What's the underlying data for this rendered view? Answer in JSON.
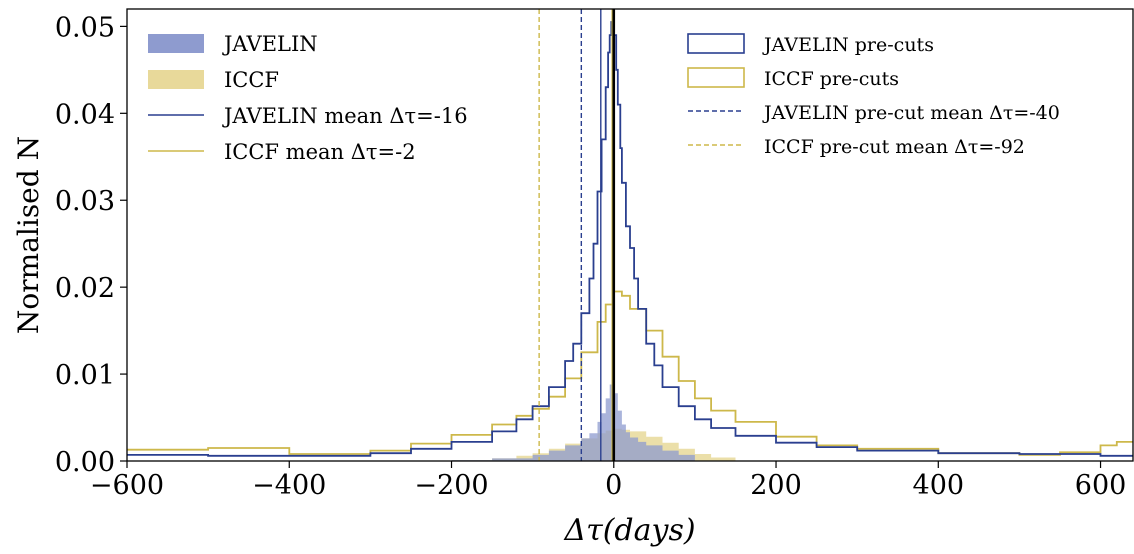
{
  "chart_data": {
    "type": "histogram",
    "xlabel": "Δτ(days)",
    "ylabel": "Normalised N",
    "xlim": [
      -600,
      640
    ],
    "ylim": [
      0,
      0.052
    ],
    "xticks": [
      -600,
      -400,
      -200,
      0,
      200,
      400,
      600
    ],
    "xtick_labels": [
      "−600",
      "−400",
      "−200",
      "0",
      "200",
      "400",
      "600"
    ],
    "yticks": [
      0,
      0.01,
      0.02,
      0.03,
      0.04,
      0.05
    ],
    "ytick_labels": [
      "0.00",
      "0.01",
      "0.02",
      "0.03",
      "0.04",
      "0.05"
    ],
    "grid": false,
    "colors": {
      "javelin": "#2a3f8f",
      "javelin_fill": "#8e9bcf",
      "iccf": "#cdb84a",
      "iccf_fill": "#e8d99a",
      "zero_line": "#000000"
    },
    "legend_left": {
      "placement": "top-left",
      "entries": [
        {
          "label": "JAVELIN",
          "style": "filled-patch",
          "color_key": "javelin_fill"
        },
        {
          "label": "ICCF",
          "style": "filled-patch",
          "color_key": "iccf_fill"
        },
        {
          "label": "JAVELIN mean Δτ=-16",
          "style": "solid-line",
          "color_key": "javelin"
        },
        {
          "label": "ICCF mean Δτ=-2",
          "style": "solid-line",
          "color_key": "iccf"
        }
      ]
    },
    "legend_right": {
      "placement": "top-right",
      "entries": [
        {
          "label": "JAVELIN pre-cuts",
          "style": "open-patch",
          "color_key": "javelin"
        },
        {
          "label": "ICCF pre-cuts",
          "style": "open-patch",
          "color_key": "iccf"
        },
        {
          "label": "JAVELIN pre-cut mean Δτ=-40",
          "style": "dashed-line",
          "color_key": "javelin"
        },
        {
          "label": "ICCF pre-cut mean Δτ=-92",
          "style": "dashed-line",
          "color_key": "iccf"
        }
      ]
    },
    "vertical_lines": [
      {
        "x": -16,
        "style": "solid",
        "color_key": "javelin"
      },
      {
        "x": -2,
        "style": "solid",
        "color_key": "iccf"
      },
      {
        "x": -40,
        "style": "dashed",
        "color_key": "javelin"
      },
      {
        "x": -92,
        "style": "dashed",
        "color_key": "iccf"
      },
      {
        "x": 0,
        "style": "solid-thick",
        "color_key": "zero_line"
      }
    ],
    "series": [
      {
        "name": "JAVELIN pre-cuts",
        "kind": "step",
        "x": [
          -600,
          -500,
          -400,
          -300,
          -250,
          -200,
          -150,
          -120,
          -100,
          -80,
          -60,
          -50,
          -40,
          -30,
          -25,
          -20,
          -15,
          -10,
          -7,
          -5,
          -3,
          0,
          3,
          5,
          8,
          10,
          15,
          20,
          25,
          30,
          40,
          50,
          60,
          80,
          100,
          120,
          150,
          200,
          250,
          300,
          400,
          500,
          600,
          640
        ],
        "y": [
          0.0007,
          0.0006,
          0.0006,
          0.0009,
          0.0014,
          0.0022,
          0.0034,
          0.0048,
          0.0063,
          0.0085,
          0.0115,
          0.0135,
          0.017,
          0.021,
          0.025,
          0.031,
          0.037,
          0.043,
          0.047,
          0.049,
          0.0505,
          0.049,
          0.045,
          0.041,
          0.036,
          0.032,
          0.027,
          0.0245,
          0.021,
          0.0175,
          0.0135,
          0.011,
          0.0085,
          0.0063,
          0.0048,
          0.0038,
          0.0029,
          0.0021,
          0.0016,
          0.0012,
          0.0009,
          0.0008,
          0.0006,
          0.0006
        ]
      },
      {
        "name": "ICCF pre-cuts",
        "kind": "step",
        "x": [
          -600,
          -500,
          -400,
          -300,
          -250,
          -200,
          -150,
          -120,
          -100,
          -80,
          -60,
          -40,
          -20,
          -10,
          0,
          10,
          20,
          40,
          60,
          80,
          100,
          120,
          150,
          200,
          250,
          300,
          400,
          500,
          550,
          600,
          620,
          640
        ],
        "y": [
          0.0013,
          0.0015,
          0.0008,
          0.0012,
          0.002,
          0.003,
          0.0042,
          0.0052,
          0.006,
          0.0074,
          0.0095,
          0.0125,
          0.016,
          0.018,
          0.0195,
          0.019,
          0.0175,
          0.015,
          0.012,
          0.0092,
          0.0072,
          0.0058,
          0.0045,
          0.0028,
          0.0018,
          0.0014,
          0.0009,
          0.0007,
          0.001,
          0.0018,
          0.0022,
          0.0022
        ]
      },
      {
        "name": "JAVELIN",
        "kind": "filled",
        "x": [
          -200,
          -150,
          -100,
          -80,
          -60,
          -40,
          -30,
          -20,
          -15,
          -10,
          -5,
          0,
          5,
          10,
          15,
          20,
          30,
          40,
          60,
          80,
          100
        ],
        "y": [
          0.0001,
          0.0003,
          0.0007,
          0.0012,
          0.0018,
          0.0026,
          0.0032,
          0.0045,
          0.0055,
          0.0072,
          0.0088,
          0.0078,
          0.0058,
          0.0042,
          0.0033,
          0.0027,
          0.0022,
          0.0018,
          0.0012,
          0.0007,
          0.0003
        ]
      },
      {
        "name": "ICCF",
        "kind": "filled",
        "x": [
          -200,
          -150,
          -120,
          -100,
          -80,
          -60,
          -40,
          -20,
          -10,
          0,
          10,
          20,
          40,
          60,
          80,
          100,
          120,
          150
        ],
        "y": [
          0.0001,
          0.0003,
          0.0006,
          0.0009,
          0.0014,
          0.002,
          0.0026,
          0.0032,
          0.0035,
          0.0037,
          0.0036,
          0.0034,
          0.0028,
          0.0021,
          0.0014,
          0.0008,
          0.0004,
          0.0001
        ]
      }
    ]
  }
}
